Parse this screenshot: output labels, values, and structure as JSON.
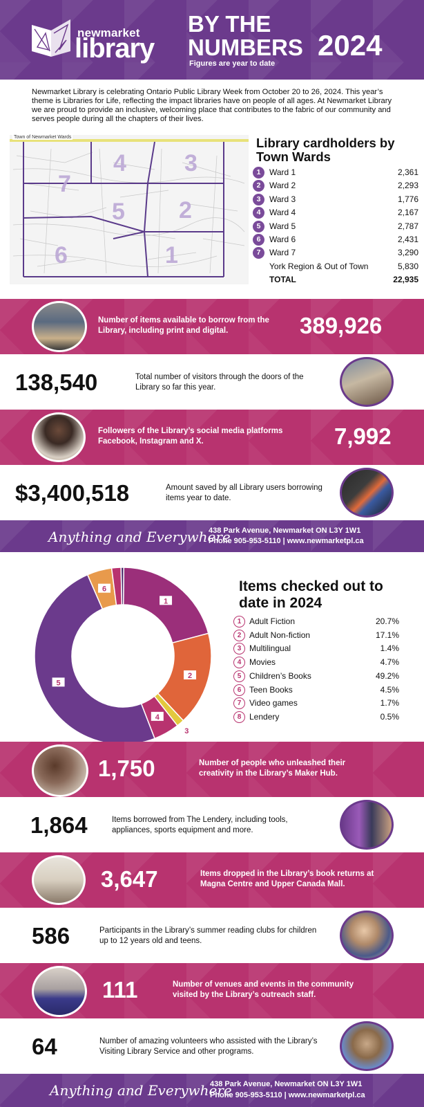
{
  "header": {
    "logo_small": "newmarket",
    "logo_big": "library",
    "title_line1": "BY THE",
    "title_line2": "NUMBERS",
    "year": "2024",
    "subtitle": "Figures are year to date"
  },
  "intro": "Newmarket Library is celebrating Ontario Public Library Week from October 20 to 26, 2024. This year’s theme is Libraries for Life, reflecting the impact libraries have on people of all ages. At Newmarket Library we are proud to provide an inclusive, welcoming place that contributes to the fabric of our community and serves people during all the chapters of their lives.",
  "map": {
    "label": "Town of Newmarket Wards",
    "ward_numbers": [
      "1",
      "2",
      "3",
      "4",
      "5",
      "6",
      "7"
    ]
  },
  "wards": {
    "title": "Library cardholders by Town Wards",
    "rows": [
      {
        "num": "1",
        "label": "Ward 1",
        "value": "2,361"
      },
      {
        "num": "2",
        "label": "Ward 2",
        "value": "2,293"
      },
      {
        "num": "3",
        "label": "Ward 3",
        "value": "1,776"
      },
      {
        "num": "4",
        "label": "Ward 4",
        "value": "2,167"
      },
      {
        "num": "5",
        "label": "Ward 5",
        "value": "2,787"
      },
      {
        "num": "6",
        "label": "Ward 6",
        "value": "2,431"
      },
      {
        "num": "7",
        "label": "Ward 7",
        "value": "3,290"
      },
      {
        "num": "",
        "label": "York Region & Out of Town",
        "value": "5,830"
      },
      {
        "num": "",
        "label": "TOTAL",
        "value": "22,935"
      }
    ]
  },
  "stats_top": [
    {
      "value": "389,926",
      "desc": "Number of items available to borrow from the Library, including print and digital."
    },
    {
      "value": "138,540",
      "desc": "Total number of visitors through the doors of the Library so far this year."
    },
    {
      "value": "7,992",
      "desc": "Followers of the Library’s social media platforms Facebook, Instagram and X."
    },
    {
      "value": "$3,400,518",
      "desc": "Amount saved by all Library users borrowing items year to date."
    }
  ],
  "footer": {
    "tagline": "Anything and Everywhere",
    "address": "438 Park Avenue, Newmarket ON L3Y 1W1",
    "phone": "Phone 905-953-5110  |  www.newmarketpl.ca"
  },
  "chart_data": {
    "type": "pie",
    "title": "Items checked out to date in 2024",
    "categories": [
      "Adult Fiction",
      "Adult Non-fiction",
      "Multilingual",
      "Movies",
      "Children’s Books",
      "Teen Books",
      "Video games",
      "Lendery"
    ],
    "values": [
      20.7,
      17.1,
      1.4,
      4.7,
      49.2,
      4.5,
      1.7,
      0.5
    ],
    "value_labels": [
      "20.7%",
      "17.1%",
      "1.4%",
      "4.7%",
      "49.2%",
      "4.5%",
      "1.7%",
      "0.5%"
    ],
    "slice_labels": [
      "1",
      "2",
      "3",
      "4",
      "5",
      "6",
      "7",
      "8"
    ],
    "colors": [
      "#9b2f7a",
      "#e0653a",
      "#e3c83d",
      "#b8336f",
      "#6b3a8c",
      "#e89a4c",
      "#b8336f",
      "#4b2a6a"
    ],
    "donut": true
  },
  "stats_bottom": [
    {
      "value": "1,750",
      "desc": "Number of people who unleashed their creativity in the Library’s Maker Hub."
    },
    {
      "value": "1,864",
      "desc": "Items borrowed from The Lendery, including tools, appliances, sports equipment and more."
    },
    {
      "value": "3,647",
      "desc": "Items dropped in the Library’s book returns at Magna Centre and Upper Canada Mall."
    },
    {
      "value": "586",
      "desc": "Participants in the Library’s summer reading clubs for children up to 12 years old and teens."
    },
    {
      "value": "111",
      "desc": "Number of venues and events in the community visited by the Library’s outreach staff."
    },
    {
      "value": "64",
      "desc": "Number of amazing volunteers who assisted with the Library’s Visiting Library Service and other programs."
    }
  ],
  "colors": {
    "purple": "#6b3a8c",
    "magenta": "#b8336f",
    "white": "#ffffff"
  }
}
